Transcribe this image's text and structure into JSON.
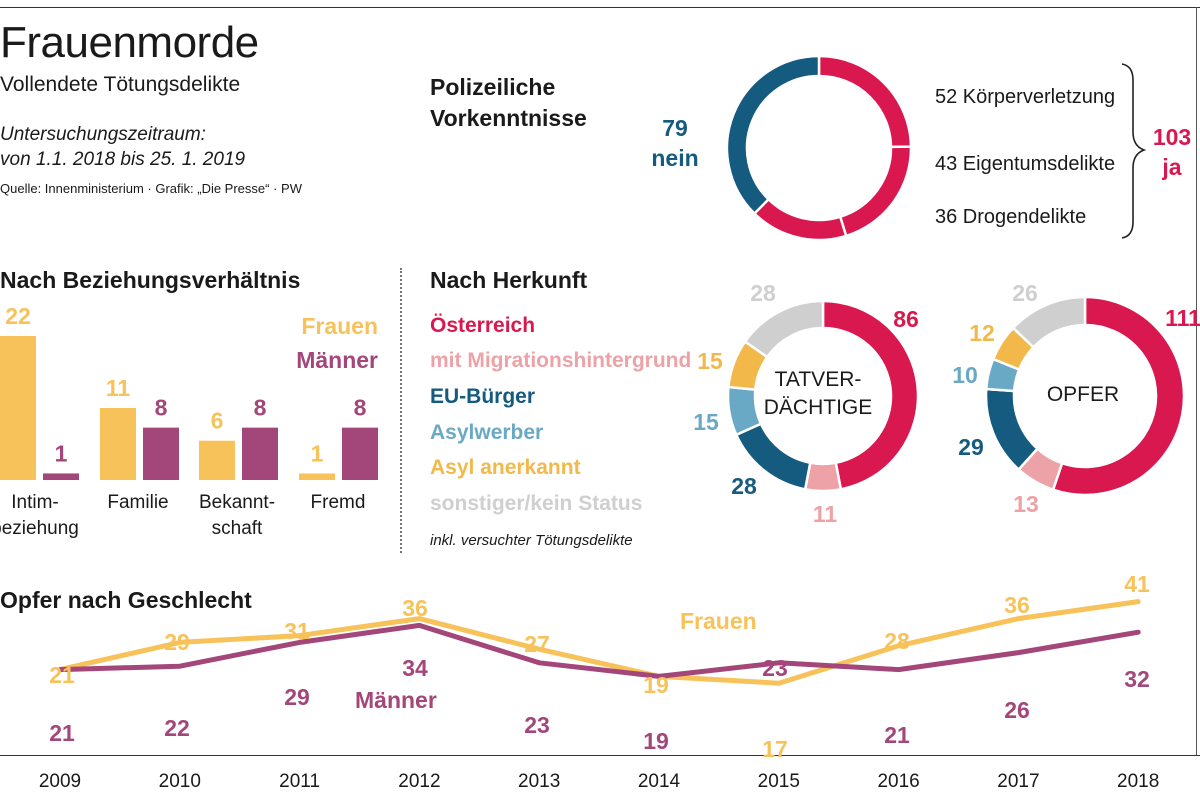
{
  "header": {
    "title": "Frauenmorde",
    "subtitle": "Vollendete Tötungsdelikte",
    "period_line1": "Untersuchungszeitraum:",
    "period_line2": "von 1.1. 2018 bis 25. 1. 2019",
    "source": "Quelle: Innenministerium · Grafik: „Die Presse“ · PW"
  },
  "colors": {
    "frauen": "#f7c25a",
    "maenner": "#a3467a",
    "austria": "#d8184f",
    "migration": "#eda2a7",
    "eu": "#155a7f",
    "asyl": "#6aa9c6",
    "asyl_anerkannt": "#f2b94a",
    "sonstiger": "#cfcfcf"
  },
  "chart_data": [
    {
      "type": "pie",
      "title": "Polizeiliche Vorkenntnisse",
      "nein_value": "79",
      "nein_label": "nein",
      "ja_value": "103",
      "ja_label": "ja",
      "ja_breakdown": [
        "52 Körperverletzung",
        "43 Eigentumsdelikte",
        "36 Drogendelikte"
      ],
      "slices": [
        {
          "label": "nein",
          "value": 79
        },
        {
          "label": "52 Körperverletzung",
          "value": 52
        },
        {
          "label": "43 Eigentumsdelikte",
          "value": 43
        },
        {
          "label": "36 Drogendelikte",
          "value": 36
        }
      ]
    },
    {
      "type": "bar",
      "title": "Nach Beziehungsverhältnis",
      "categories_line1": [
        "Intim-",
        "Familie",
        "Bekannt-",
        "Fremd"
      ],
      "categories_line2": [
        "beziehung",
        "",
        "schaft",
        ""
      ],
      "series": [
        {
          "name": "Frauen",
          "values": [
            22,
            11,
            6,
            1
          ]
        },
        {
          "name": "Männer",
          "values": [
            1,
            8,
            8,
            8
          ]
        }
      ],
      "ylim": [
        0,
        22
      ]
    },
    {
      "type": "pie",
      "title": "Nach Herkunft",
      "legend": [
        "Österreich",
        "mit Migrationshintergrund",
        "EU-Bürger",
        "Asylwerber",
        "Asyl anerkannt",
        "sonstiger/kein Status"
      ],
      "note": "inkl. versuchter Tötungsdelikte",
      "donuts": [
        {
          "center_line1": "TATVER-",
          "center_line2": "DÄCHTIGE",
          "values": [
            86,
            11,
            28,
            15,
            15,
            28
          ]
        },
        {
          "center_line1": "OPFER",
          "center_line2": "",
          "values": [
            111,
            13,
            29,
            10,
            12,
            26
          ]
        }
      ]
    },
    {
      "type": "line",
      "title": "Opfer nach Geschlecht",
      "x": [
        "2009",
        "2010",
        "2011",
        "2012",
        "2013",
        "2014",
        "2015",
        "2016",
        "2017",
        "2018"
      ],
      "series": [
        {
          "name": "Frauen",
          "values": [
            21,
            29,
            31,
            36,
            27,
            19,
            17,
            28,
            36,
            41
          ]
        },
        {
          "name": "Männer",
          "values": [
            21,
            22,
            29,
            34,
            23,
            19,
            23,
            21,
            26,
            32
          ]
        }
      ]
    }
  ]
}
